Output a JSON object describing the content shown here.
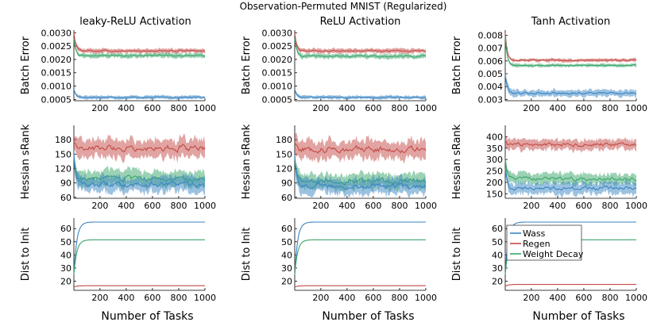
{
  "suptitle": "Observation-Permuted MNIST (Regularized)",
  "colors": {
    "Wass": "#3a85c3",
    "Regen": "#c44a45",
    "Weight Decay": "#3aa56a"
  },
  "legend": {
    "location": "upper-left of bottom-right panel",
    "entries": [
      "Wass",
      "Regen",
      "Weight Decay"
    ]
  },
  "chart_data": [
    {
      "type": "line",
      "panel": "leaky-batch",
      "title": "leaky-ReLU Activation",
      "xlabel": "",
      "ylabel": "Batch Error",
      "xlim": [
        1,
        1000
      ],
      "xticks": [
        200,
        400,
        600,
        800,
        1000
      ],
      "ylim": [
        0.00045,
        0.0031
      ],
      "yticks": [
        0.0005,
        0.001,
        0.0015,
        0.002,
        0.0025,
        0.003
      ],
      "ytick_labels": [
        "0.0005",
        "0.0010",
        "0.0015",
        "0.0020",
        "0.0025",
        "0.0030"
      ],
      "series": [
        {
          "name": "Regen",
          "start": 0.003,
          "plateau": 0.00232,
          "band": 8e-05
        },
        {
          "name": "Weight Decay",
          "start": 0.0028,
          "plateau": 0.00215,
          "band": 8e-05
        },
        {
          "name": "Wass",
          "start": 0.00088,
          "plateau": 0.00058,
          "band": 6e-05
        }
      ]
    },
    {
      "type": "line",
      "panel": "relu-batch",
      "title": "ReLU Activation",
      "xlabel": "",
      "ylabel": "Batch Error",
      "xlim": [
        1,
        1000
      ],
      "xticks": [
        200,
        400,
        600,
        800,
        1000
      ],
      "ylim": [
        0.00045,
        0.0031
      ],
      "yticks": [
        0.0005,
        0.001,
        0.0015,
        0.002,
        0.0025,
        0.003
      ],
      "ytick_labels": [
        "0.0005",
        "0.0010",
        "0.0015",
        "0.0020",
        "0.0025",
        "0.0030"
      ],
      "series": [
        {
          "name": "Regen",
          "start": 0.003,
          "plateau": 0.00232,
          "band": 8e-05
        },
        {
          "name": "Weight Decay",
          "start": 0.0028,
          "plateau": 0.00212,
          "band": 8e-05
        },
        {
          "name": "Wass",
          "start": 0.00088,
          "plateau": 0.00058,
          "band": 6e-05
        }
      ]
    },
    {
      "type": "line",
      "panel": "tanh-batch",
      "title": "Tanh Activation",
      "xlabel": "",
      "ylabel": "Batch Error",
      "xlim": [
        1,
        1000
      ],
      "xticks": [
        200,
        400,
        600,
        800,
        1000
      ],
      "ylim": [
        0.0029,
        0.0084
      ],
      "yticks": [
        0.003,
        0.004,
        0.005,
        0.006,
        0.007,
        0.008
      ],
      "ytick_labels": [
        "0.003",
        "0.004",
        "0.005",
        "0.006",
        "0.007",
        "0.008"
      ],
      "series": [
        {
          "name": "Regen",
          "start": 0.0082,
          "plateau": 0.00605,
          "band": 0.00012
        },
        {
          "name": "Weight Decay",
          "start": 0.0079,
          "plateau": 0.00565,
          "band": 0.00012
        },
        {
          "name": "Wass",
          "start": 0.005,
          "plateau": 0.0035,
          "band": 0.00025
        }
      ]
    },
    {
      "type": "line",
      "panel": "leaky-srank",
      "title": "",
      "xlabel": "",
      "ylabel": "Hessian sRank",
      "xlim": [
        1,
        1000
      ],
      "xticks": [
        200,
        400,
        600,
        800,
        1000
      ],
      "ylim": [
        58,
        210
      ],
      "yticks": [
        60,
        90,
        120,
        150,
        180
      ],
      "ytick_labels": [
        "60",
        "90",
        "120",
        "150",
        "180"
      ],
      "series": [
        {
          "name": "Regen",
          "start": 175,
          "plateau": 163,
          "band": 18
        },
        {
          "name": "Weight Decay",
          "start": 145,
          "plateau": 98,
          "band": 15
        },
        {
          "name": "Wass",
          "start": 150,
          "plateau": 87,
          "band": 15
        }
      ]
    },
    {
      "type": "line",
      "panel": "relu-srank",
      "title": "",
      "xlabel": "",
      "ylabel": "Hessian sRank",
      "xlim": [
        1,
        1000
      ],
      "xticks": [
        200,
        400,
        600,
        800,
        1000
      ],
      "ylim": [
        58,
        210
      ],
      "yticks": [
        60,
        90,
        120,
        150,
        180
      ],
      "ytick_labels": [
        "60",
        "90",
        "120",
        "150",
        "180"
      ],
      "series": [
        {
          "name": "Regen",
          "start": 175,
          "plateau": 160,
          "band": 18
        },
        {
          "name": "Weight Decay",
          "start": 145,
          "plateau": 93,
          "band": 15
        },
        {
          "name": "Wass",
          "start": 150,
          "plateau": 84,
          "band": 15
        }
      ]
    },
    {
      "type": "line",
      "panel": "tanh-srank",
      "title": "",
      "xlabel": "",
      "ylabel": "Hessian sRank",
      "xlim": [
        1,
        1000
      ],
      "xticks": [
        200,
        400,
        600,
        800,
        1000
      ],
      "ylim": [
        130,
        450
      ],
      "yticks": [
        150,
        200,
        250,
        300,
        350,
        400
      ],
      "ytick_labels": [
        "150",
        "200",
        "250",
        "300",
        "350",
        "400"
      ],
      "series": [
        {
          "name": "Regen",
          "start": 385,
          "plateau": 365,
          "band": 22
        },
        {
          "name": "Weight Decay",
          "start": 300,
          "plateau": 215,
          "band": 22
        },
        {
          "name": "Wass",
          "start": 260,
          "plateau": 175,
          "band": 25
        }
      ]
    },
    {
      "type": "line",
      "panel": "leaky-dist",
      "title": "",
      "xlabel": "Number of Tasks",
      "ylabel": "Dist to Init",
      "xlim": [
        1,
        1000
      ],
      "xticks": [
        200,
        400,
        600,
        800,
        1000
      ],
      "ylim": [
        13,
        68
      ],
      "yticks": [
        20,
        30,
        40,
        50,
        60
      ],
      "ytick_labels": [
        "20",
        "30",
        "40",
        "50",
        "60"
      ],
      "series": [
        {
          "name": "Wass",
          "start": 25,
          "plateau": 65,
          "band": 0
        },
        {
          "name": "Weight Decay",
          "start": 25,
          "plateau": 51.5,
          "band": 0
        },
        {
          "name": "Regen",
          "start": 15.5,
          "plateau": 16.5,
          "band": 0
        }
      ]
    },
    {
      "type": "line",
      "panel": "relu-dist",
      "title": "",
      "xlabel": "Number of Tasks",
      "ylabel": "Dist to Init",
      "xlim": [
        1,
        1000
      ],
      "xticks": [
        200,
        400,
        600,
        800,
        1000
      ],
      "ylim": [
        13,
        68
      ],
      "yticks": [
        20,
        30,
        40,
        50,
        60
      ],
      "ytick_labels": [
        "20",
        "30",
        "40",
        "50",
        "60"
      ],
      "series": [
        {
          "name": "Wass",
          "start": 25,
          "plateau": 65,
          "band": 0
        },
        {
          "name": "Weight Decay",
          "start": 25,
          "plateau": 51.5,
          "band": 0
        },
        {
          "name": "Regen",
          "start": 15.5,
          "plateau": 16.5,
          "band": 0
        }
      ]
    },
    {
      "type": "line",
      "panel": "tanh-dist",
      "title": "",
      "xlabel": "Number of Tasks",
      "ylabel": "Dist to Init",
      "xlim": [
        1,
        1000
      ],
      "xticks": [
        200,
        400,
        600,
        800,
        1000
      ],
      "ylim": [
        13,
        68
      ],
      "yticks": [
        20,
        30,
        40,
        50,
        60
      ],
      "ytick_labels": [
        "20",
        "30",
        "40",
        "50",
        "60"
      ],
      "series": [
        {
          "name": "Wass",
          "start": 25,
          "plateau": 65,
          "band": 0
        },
        {
          "name": "Weight Decay",
          "start": 25,
          "plateau": 51.5,
          "band": 0
        },
        {
          "name": "Regen",
          "start": 16,
          "plateau": 17.5,
          "band": 0
        }
      ]
    }
  ]
}
